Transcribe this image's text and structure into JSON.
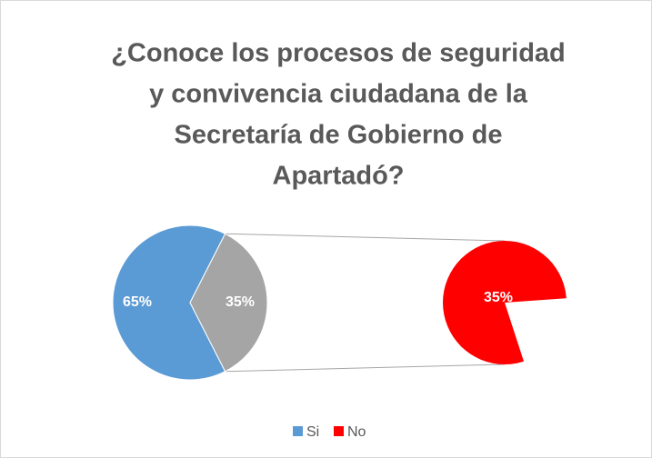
{
  "chart_data": {
    "type": "pie-of-pie",
    "title": [
      "¿Conoce los procesos de seguridad",
      "y convivencia ciudadana de la",
      "Secretaría de Gobierno de",
      "Apartadó?"
    ],
    "categories": [
      "Si",
      "No"
    ],
    "values": [
      65,
      35
    ],
    "value_labels": [
      "65%",
      "35%"
    ],
    "colors": [
      "#5b9bd5",
      "#ff0000"
    ],
    "other_color": "#a5a5a5",
    "legend": "bottom"
  }
}
